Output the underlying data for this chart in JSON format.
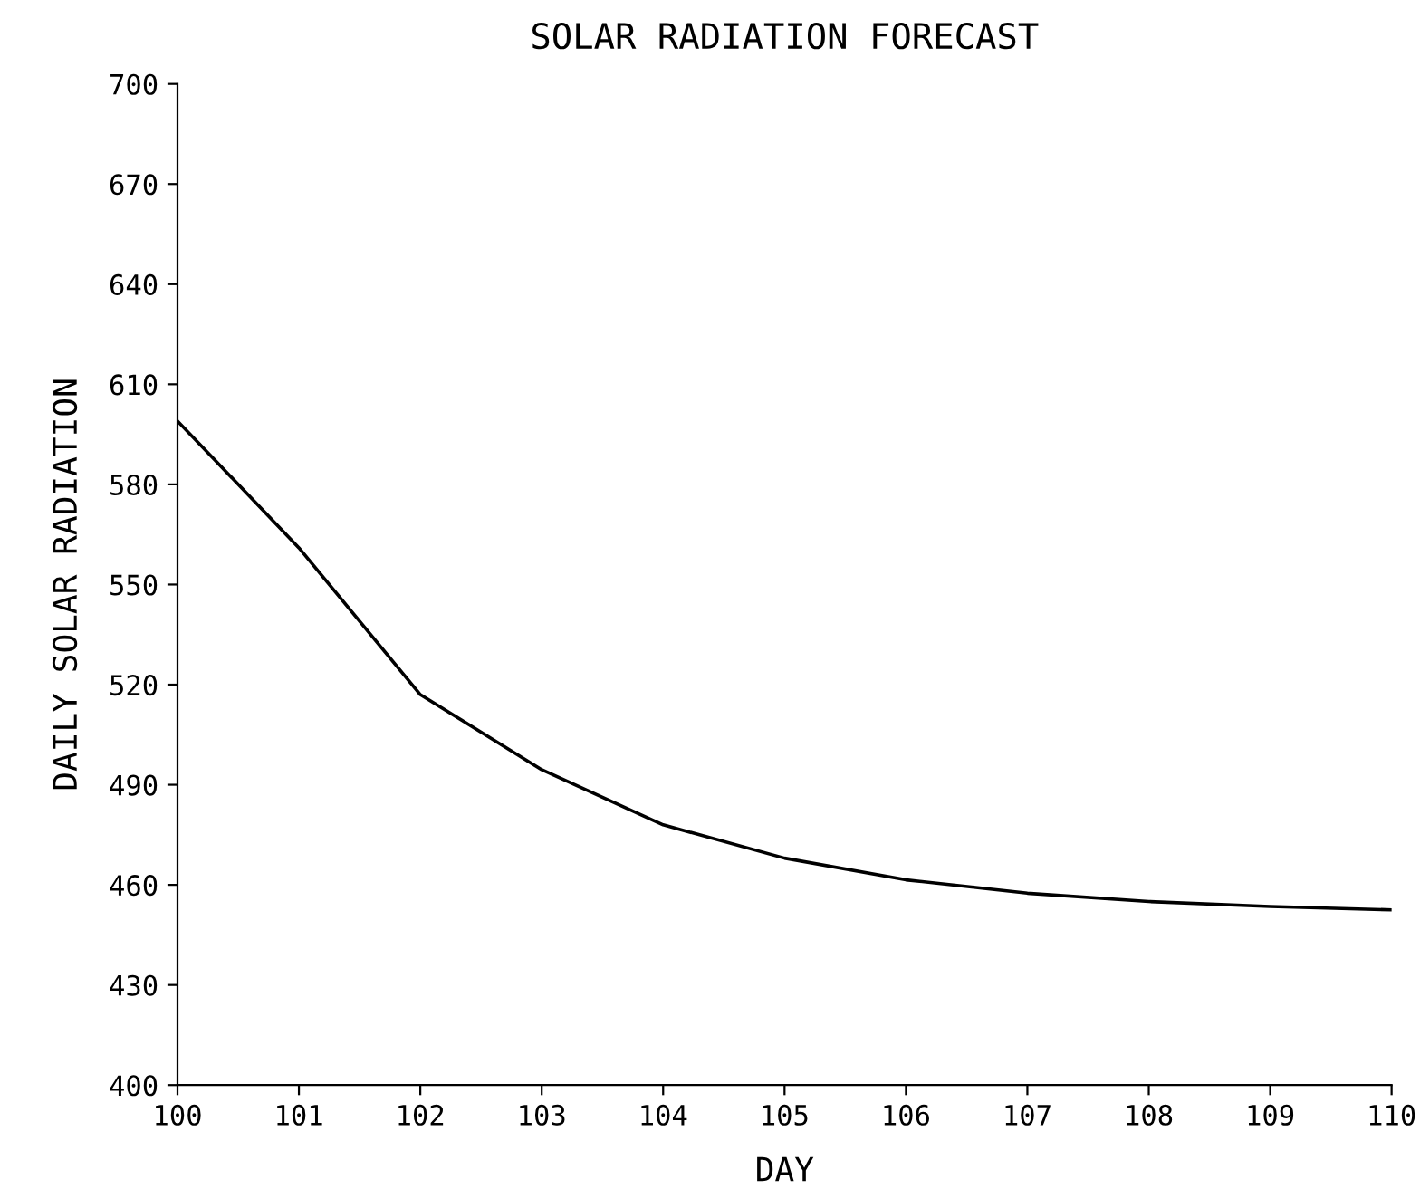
{
  "chart_data": {
    "type": "line",
    "title": "SOLAR RADIATION FORECAST",
    "xlabel": "DAY",
    "ylabel": "DAILY SOLAR RADIATION",
    "x": [
      100,
      101,
      102,
      103,
      104,
      105,
      106,
      107,
      108,
      109,
      110
    ],
    "series": [
      {
        "color": "#000000",
        "values": [
          599,
          561,
          517,
          494.5,
          478,
          468,
          461.5,
          457.5,
          455,
          453.5,
          452.5
        ]
      }
    ],
    "xlim": [
      100,
      110
    ],
    "xticks": [
      100,
      101,
      102,
      103,
      104,
      105,
      106,
      107,
      108,
      109,
      110
    ],
    "ylim": [
      400,
      700
    ],
    "yticks": [
      400,
      430,
      460,
      490,
      520,
      550,
      580,
      610,
      640,
      670,
      700
    ],
    "grid": false,
    "marker": "none",
    "line_style": "solid"
  }
}
